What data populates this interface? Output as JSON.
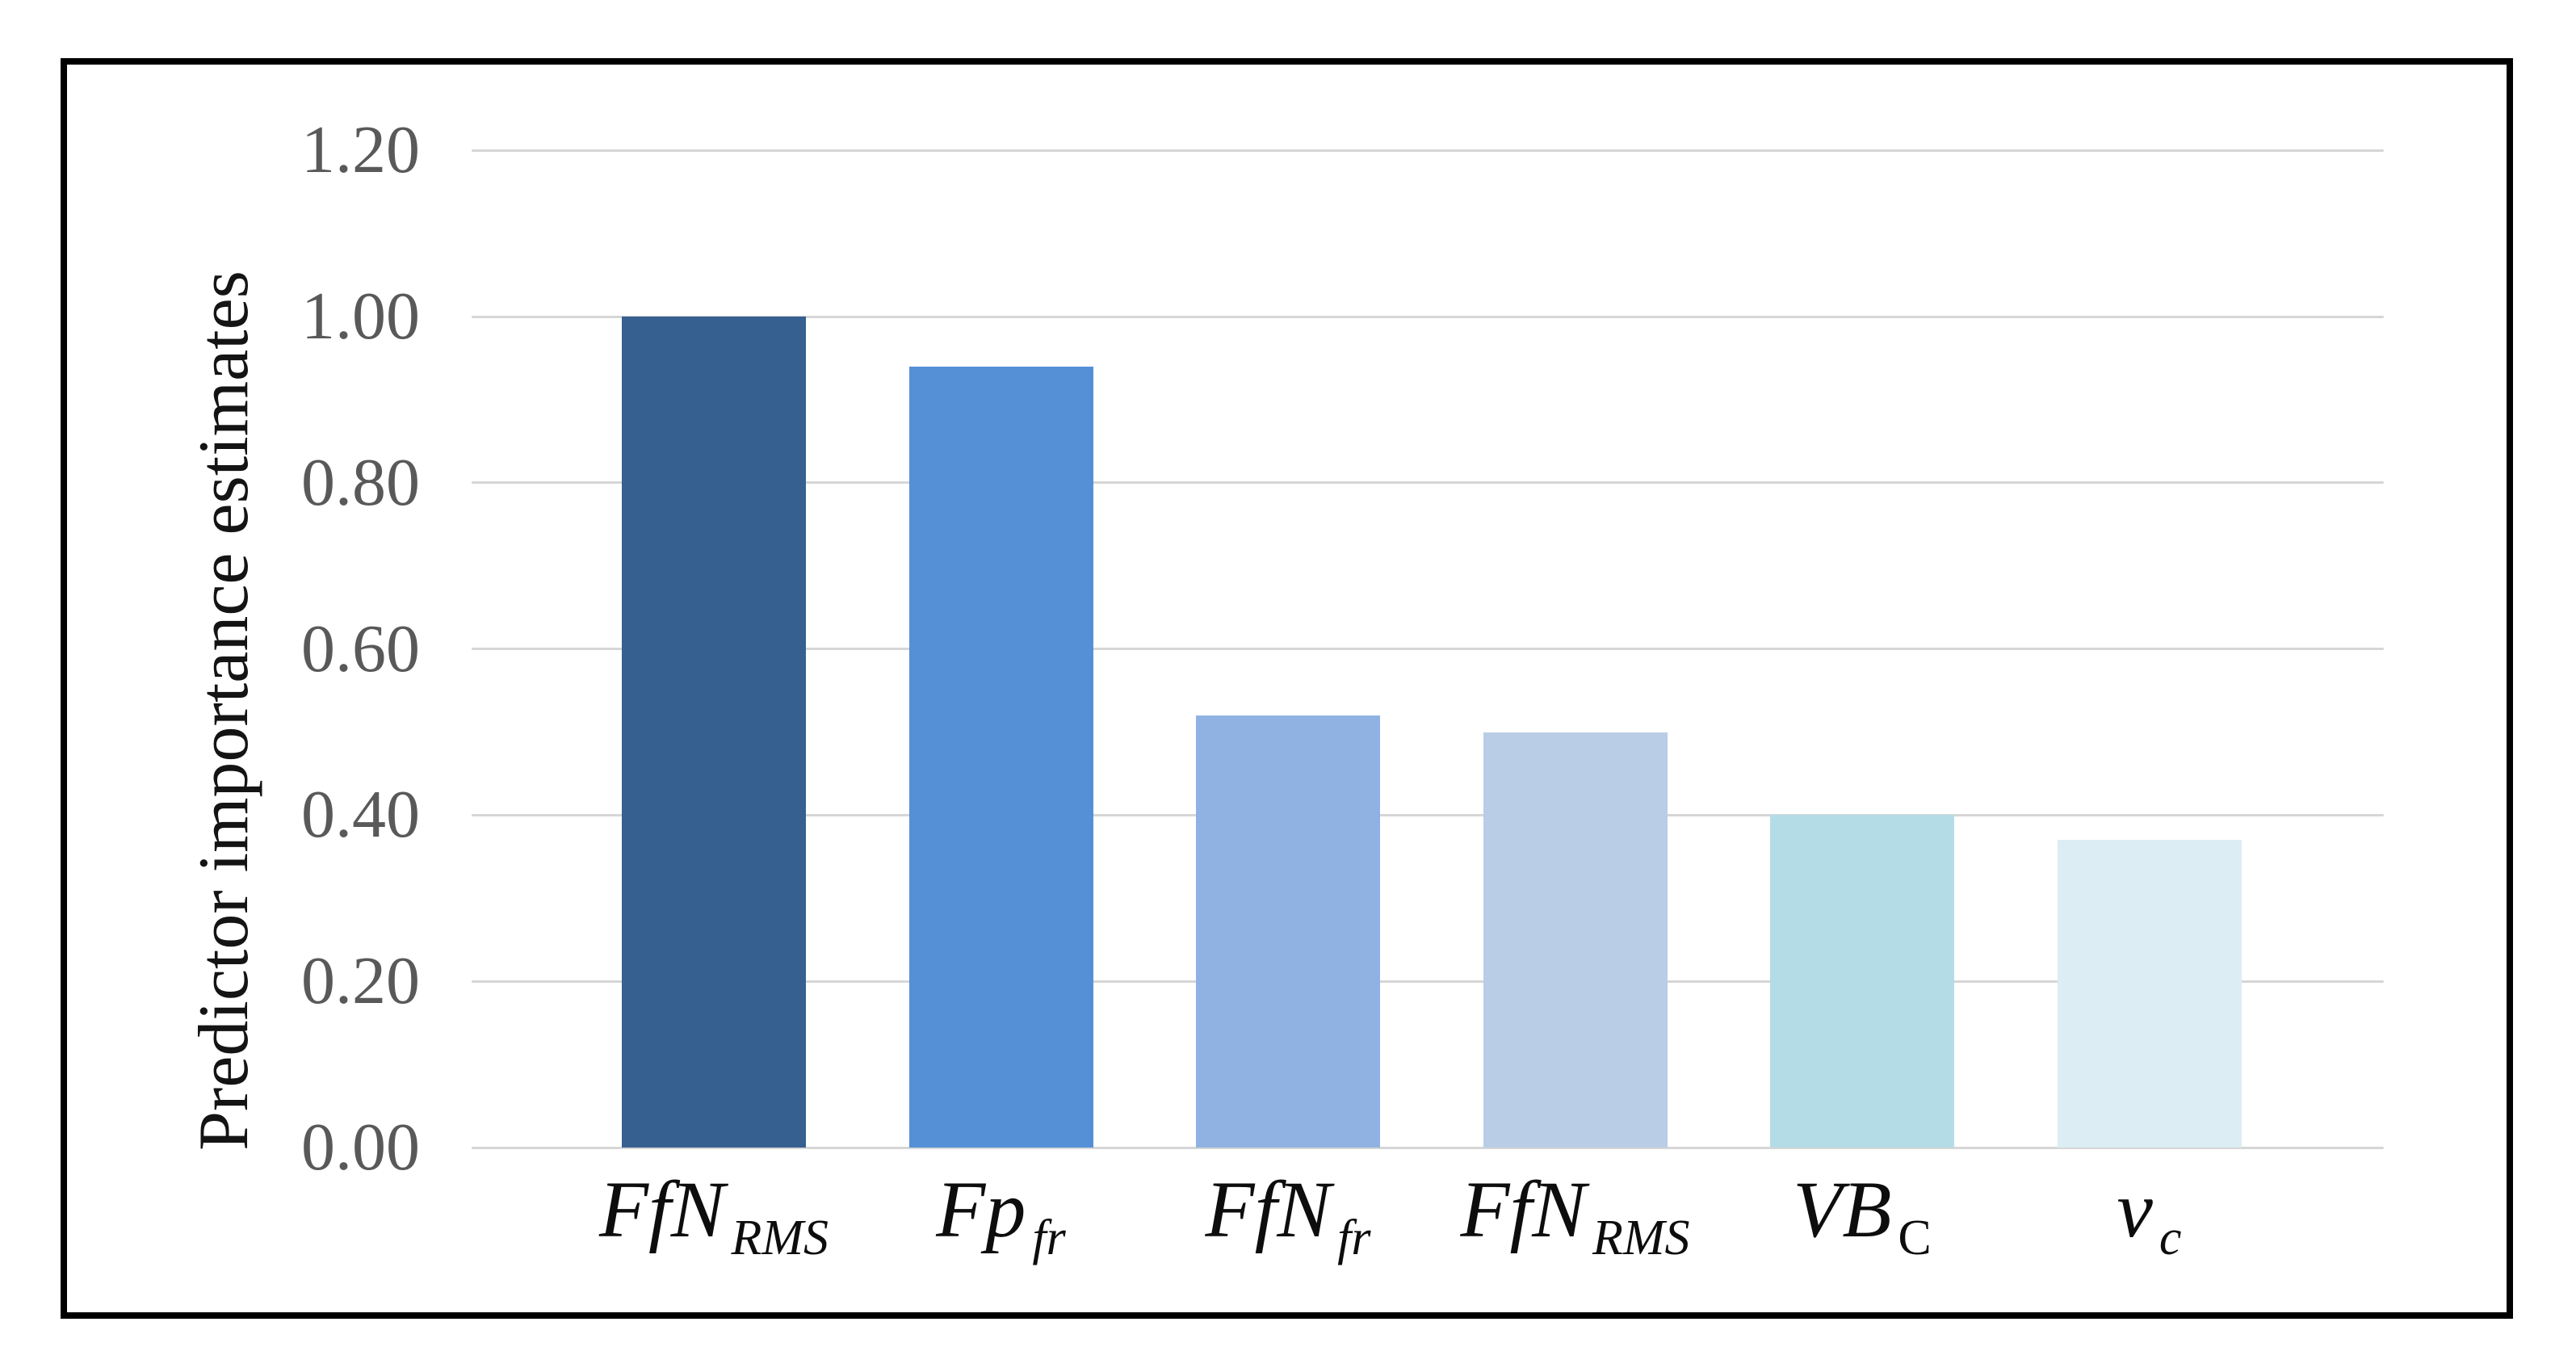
{
  "chart_data": {
    "type": "bar",
    "title": "",
    "xlabel": "",
    "ylabel": "Predictor importance estimates",
    "ylim": [
      0,
      1.2
    ],
    "grid": true,
    "legend": false,
    "categories": [
      {
        "main": "FfN",
        "sub": "RMS",
        "sub_italic": true
      },
      {
        "main": "Fp",
        "sub": "fr",
        "sub_italic": true
      },
      {
        "main": "FfN",
        "sub": "fr",
        "sub_italic": true
      },
      {
        "main": "FfN",
        "sub": "RMS",
        "sub_italic": true
      },
      {
        "main": "VB",
        "sub": "C",
        "sub_italic": false
      },
      {
        "main": "v",
        "sub": "c",
        "sub_italic": true
      }
    ],
    "values": [
      1.0,
      0.94,
      0.52,
      0.5,
      0.4,
      0.37
    ],
    "bar_colors": [
      "#36608f",
      "#5590d6",
      "#8fb2e3",
      "#b9cde7",
      "#b4dce7",
      "#dcedf4"
    ],
    "yticks": [
      {
        "label": "1.20",
        "value": 1.2
      },
      {
        "label": "1.00",
        "value": 1.0
      },
      {
        "label": "0.80",
        "value": 0.8
      },
      {
        "label": "0.60",
        "value": 0.6
      },
      {
        "label": "0.40",
        "value": 0.4
      },
      {
        "label": "0.20",
        "value": 0.2
      },
      {
        "label": "0.00",
        "value": 0.0
      }
    ],
    "gridline_color": "#d6d6d6",
    "tick_label_color": "#595959",
    "axis_label_color": "#141414",
    "frame_color": "#000000"
  }
}
